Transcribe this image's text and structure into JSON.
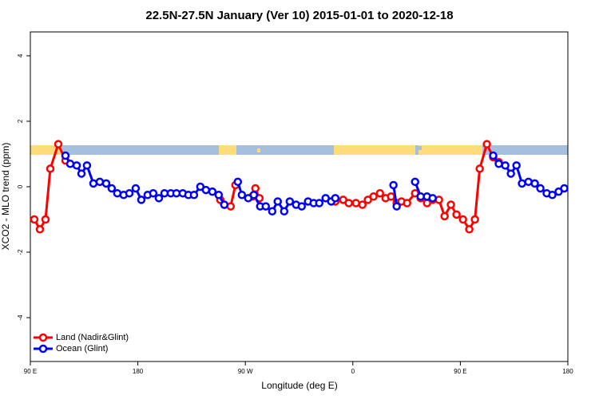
{
  "chart_data": {
    "type": "line",
    "title": "22.5N-27.5N January (Ver 10)   2015-01-01 to 2020-12-18",
    "xlabel": "Longitude (deg E)",
    "ylabel": "XCO2 - MLO trend (ppm)",
    "xlim": [
      90,
      540
    ],
    "ylim": [
      -5.34,
      4.73
    ],
    "xticks": [
      {
        "value": 90,
        "label": "90 E"
      },
      180,
      {
        "value": 270,
        "label": "90 W"
      },
      {
        "value": 360,
        "label": "0"
      },
      {
        "value": 450,
        "label": "90 E"
      },
      {
        "value": 540,
        "label": "180"
      }
    ],
    "yticks": [
      -4,
      -2,
      0,
      2,
      4
    ],
    "legend": "bottomleft",
    "series": [
      {
        "name": "Land (Nadir&Glint)",
        "color": "#ff0000",
        "x": [
          93.3,
          98.0,
          102.7,
          106.7,
          113.4,
          119.4,
          null,
          249.0,
          252.4,
          257.7,
          261.7,
          null,
          275.8,
          278.4,
          281.8,
          null,
          345.3,
          351.9,
          356.6,
          362.6,
          368.0,
          372.6,
          377.3,
          382.7,
          387.4,
          392.0,
          396.7,
          400.7,
          405.4,
          412.1,
          416.8,
          422.1,
          426.8,
          432.1,
          436.8,
          442.1,
          446.8,
          452.2,
          457.5,
          462.2,
          466.2,
          472.2,
          477.5,
          482.2
        ],
        "values": [
          -1.0,
          -1.3,
          -1.0,
          0.55,
          1.3,
          0.8,
          null,
          -0.4,
          -0.55,
          -0.6,
          0.05,
          null,
          -0.3,
          -0.05,
          -0.35,
          null,
          -0.45,
          -0.4,
          -0.5,
          -0.5,
          -0.55,
          -0.4,
          -0.3,
          -0.2,
          -0.35,
          -0.3,
          -0.5,
          -0.45,
          -0.5,
          -0.2,
          -0.35,
          -0.5,
          -0.4,
          -0.4,
          -0.9,
          -0.55,
          -0.85,
          -1.0,
          -1.3,
          -1.0,
          0.55,
          1.3,
          0.9,
          0.75
        ]
      },
      {
        "name": "Ocean (Glint)",
        "color": "#0000ff",
        "x": [
          119.4,
          123.4,
          128.8,
          132.8,
          137.4,
          142.8,
          148.1,
          153.5,
          158.1,
          162.8,
          168.1,
          172.9,
          178.2,
          182.9,
          188.2,
          192.9,
          197.6,
          202.3,
          207.6,
          212.3,
          217.6,
          222.3,
          227.0,
          232.3,
          237.0,
          242.4,
          247.7,
          252.4,
          null,
          263.7,
          267.1,
          272.4,
          277.1,
          282.4,
          287.1,
          292.5,
          297.1,
          302.5,
          307.2,
          312.5,
          317.2,
          322.5,
          327.2,
          331.9,
          337.2,
          341.9,
          345.3,
          null,
          394.0,
          396.7,
          null,
          412.1,
          416.8,
          422.1,
          426.8,
          null,
          477.5,
          482.2,
          487.6,
          492.3,
          497.0,
          501.6,
          507.0,
          512.3,
          517.0,
          522.3,
          527.0,
          532.3,
          537.0
        ],
        "values": [
          0.95,
          0.7,
          0.65,
          0.4,
          0.65,
          0.1,
          0.15,
          0.1,
          -0.05,
          -0.2,
          -0.25,
          -0.2,
          -0.05,
          -0.4,
          -0.25,
          -0.2,
          -0.35,
          -0.2,
          -0.2,
          -0.2,
          -0.2,
          -0.25,
          -0.25,
          0.0,
          -0.1,
          -0.15,
          -0.25,
          -0.55,
          null,
          0.15,
          -0.25,
          -0.35,
          -0.25,
          -0.6,
          -0.6,
          -0.75,
          -0.45,
          -0.75,
          -0.45,
          -0.55,
          -0.6,
          -0.45,
          -0.5,
          -0.5,
          -0.35,
          -0.45,
          -0.35,
          null,
          0.05,
          -0.6,
          null,
          0.15,
          -0.3,
          -0.3,
          -0.35,
          null,
          0.95,
          0.7,
          0.65,
          0.4,
          0.65,
          0.1,
          0.15,
          0.1,
          -0.05,
          -0.2,
          -0.25,
          -0.15,
          -0.05
        ]
      }
    ]
  }
}
